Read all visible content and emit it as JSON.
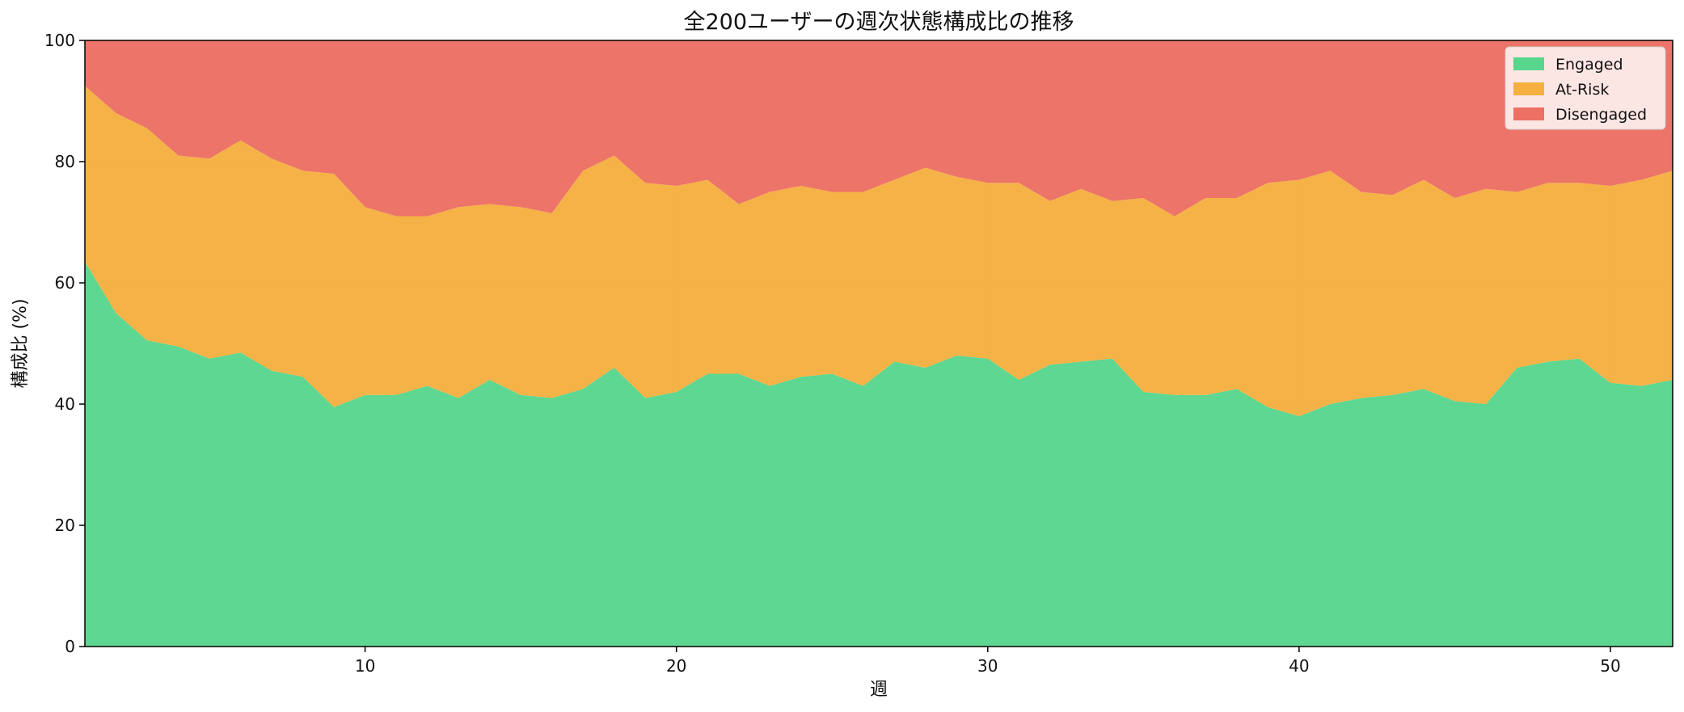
{
  "chart_data": {
    "type": "area",
    "stacked": true,
    "title": "全200ユーザーの週次状態構成比の推移",
    "xlabel": "週",
    "ylabel": "構成比 (%)",
    "xlim": [
      1,
      52
    ],
    "ylim": [
      0,
      100
    ],
    "xticks": [
      10,
      20,
      30,
      40,
      50
    ],
    "yticks": [
      0,
      20,
      40,
      60,
      80,
      100
    ],
    "grid": true,
    "legend_position": "top-right",
    "x": [
      1,
      2,
      3,
      4,
      5,
      6,
      7,
      8,
      9,
      10,
      11,
      12,
      13,
      14,
      15,
      16,
      17,
      18,
      19,
      20,
      21,
      22,
      23,
      24,
      25,
      26,
      27,
      28,
      29,
      30,
      31,
      32,
      33,
      34,
      35,
      36,
      37,
      38,
      39,
      40,
      41,
      42,
      43,
      44,
      45,
      46,
      47,
      48,
      49,
      50,
      51,
      52
    ],
    "series": [
      {
        "name": "Engaged",
        "color": "#58d68d",
        "values": [
          63.5,
          55,
          50.5,
          49.5,
          47.5,
          48.5,
          45.5,
          44.5,
          39.5,
          41.5,
          41.5,
          43,
          41,
          44,
          41.5,
          41,
          42.5,
          46,
          41,
          42,
          45,
          45,
          43,
          44.5,
          45,
          43,
          47,
          46,
          48,
          47.5,
          44,
          46.5,
          47,
          47.5,
          42,
          41.5,
          41.5,
          42.5,
          39.5,
          38,
          40,
          41,
          41.5,
          42.5,
          40.5,
          40,
          46,
          47,
          47.5,
          43.5,
          43,
          44
        ]
      },
      {
        "name": "At-Risk",
        "color": "#f5b041",
        "values": [
          29,
          33,
          35,
          31.5,
          33,
          35,
          35,
          34,
          38.5,
          31,
          29.5,
          28,
          31.5,
          29,
          31,
          30.5,
          36,
          35,
          35.5,
          34,
          32,
          28,
          32,
          31.5,
          30,
          32,
          30,
          33,
          29.5,
          29,
          32.5,
          27,
          28.5,
          26,
          32,
          29.5,
          32.5,
          31.5,
          37,
          39,
          38.5,
          34,
          33,
          34.5,
          33.5,
          35.5,
          29,
          29.5,
          29,
          32.5,
          34,
          34.5
        ]
      },
      {
        "name": "Disengaged",
        "color": "#ec7063",
        "values": [
          7.5,
          12,
          14.5,
          19,
          19.5,
          16.5,
          19.5,
          21.5,
          22,
          27.5,
          29,
          29,
          27.5,
          27,
          27.5,
          28.5,
          21.5,
          19,
          23.5,
          24,
          23,
          27,
          25,
          24,
          25,
          25,
          23,
          21,
          22.5,
          23.5,
          23.5,
          26.5,
          24.5,
          26.5,
          26,
          29,
          26,
          26,
          23.5,
          23,
          21.5,
          25,
          25.5,
          23,
          26,
          24.5,
          25,
          23.5,
          23.5,
          24,
          23,
          21.5
        ]
      }
    ]
  }
}
